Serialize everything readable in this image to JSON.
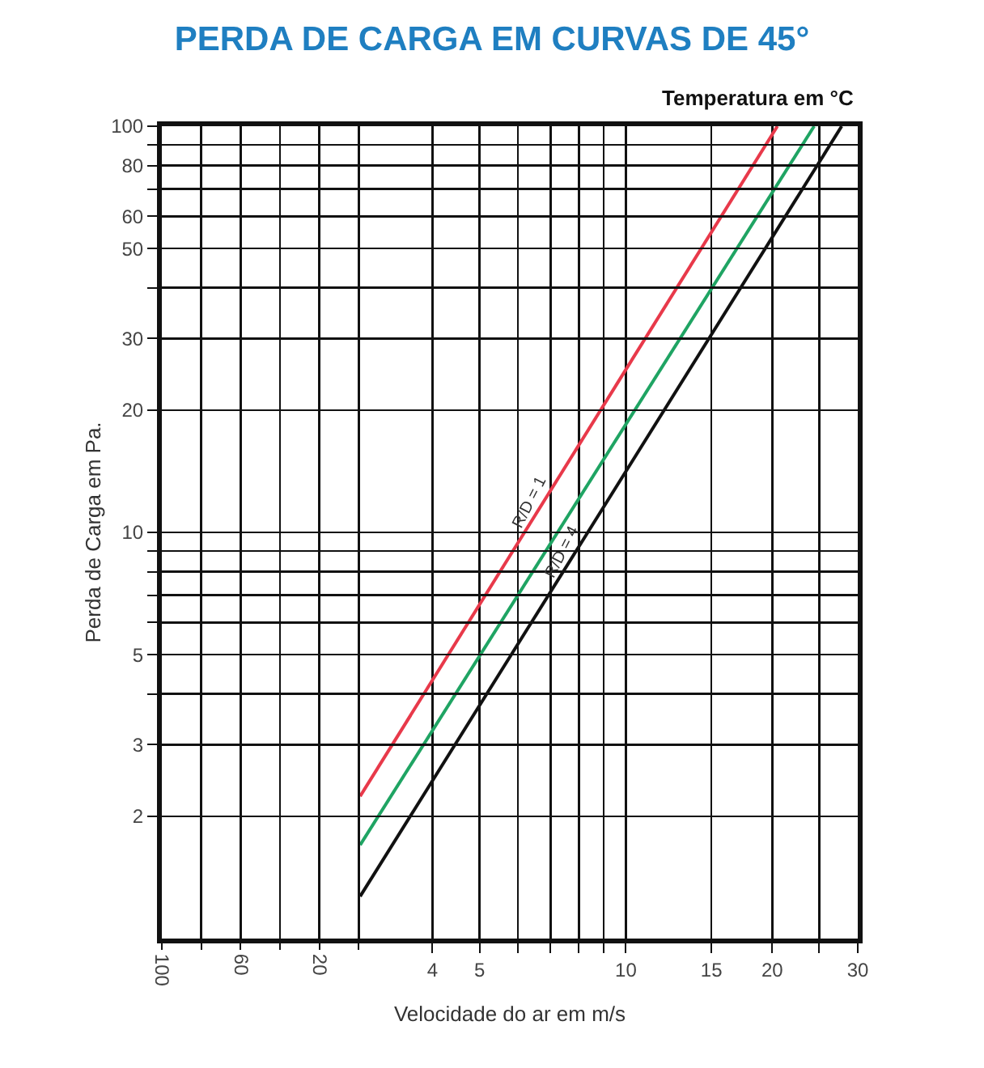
{
  "chart_data": {
    "type": "line",
    "title": "PERDA DE CARGA EM CURVAS DE 45°",
    "xlabel": "Velocidade do ar em m/s",
    "ylabel": "Perda de Carga em Pa.",
    "x2label": "Temperatura em °C",
    "log": "xy",
    "grid": true,
    "xlim": [
      1.11,
      30
    ],
    "xticks": [
      4,
      5,
      {
        "value": 6,
        "label": null
      },
      {
        "value": 7,
        "label": null
      },
      {
        "value": 8,
        "label": null
      },
      {
        "value": 9,
        "label": null
      },
      10,
      15,
      20,
      {
        "value": 25,
        "label": null
      },
      30
    ],
    "ylim": [
      1,
      100
    ],
    "yticks": [
      2,
      3,
      {
        "value": 4,
        "label": null
      },
      5,
      {
        "value": 6,
        "label": null
      },
      {
        "value": 7,
        "label": null
      },
      {
        "value": 8,
        "label": null
      },
      {
        "value": 9,
        "label": null
      },
      10,
      20,
      30,
      {
        "value": 40,
        "label": null
      },
      50,
      60,
      {
        "value": 70,
        "label": null
      },
      80,
      {
        "value": 90,
        "label": null
      },
      100
    ],
    "x2lim": [
      100,
      -253.3
    ],
    "x2ticks": [
      100,
      {
        "value": 80,
        "label": null
      },
      60,
      {
        "value": 40,
        "label": null
      },
      20,
      {
        "value": 0,
        "label": null
      }
    ],
    "series": [
      {
        "name": "R/D = 1",
        "color": "#e8394a",
        "x": [
          2.84,
          20.5
        ],
        "values": [
          2.24,
          100
        ]
      },
      {
        "color": "#1fa463",
        "x": [
          2.84,
          24.4
        ],
        "values": [
          1.7,
          100
        ]
      },
      {
        "name": "R/D = 4",
        "color": "#111111",
        "x": [
          2.84,
          27.8
        ],
        "values": [
          1.27,
          100
        ]
      }
    ]
  }
}
